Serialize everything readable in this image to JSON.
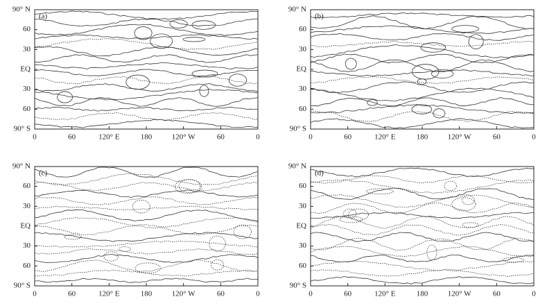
{
  "panels": [
    {
      "label": "(a)"
    },
    {
      "label": "(b)"
    },
    {
      "label": "(c)"
    },
    {
      "label": "(d)"
    }
  ],
  "axes": {
    "y_tick_labels": [
      "90° N",
      "60",
      "30",
      "EQ",
      "30",
      "60",
      "90° S"
    ],
    "x_tick_labels": [
      "0",
      "60",
      "120° E",
      "180",
      "120° W",
      "60",
      "0"
    ]
  }
}
